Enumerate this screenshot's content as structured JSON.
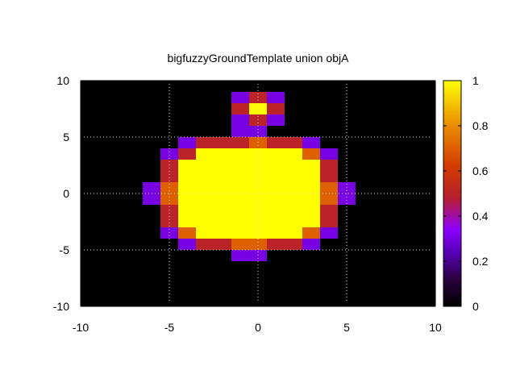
{
  "chart_data": {
    "type": "heatmap",
    "title": "bigfuzzyGroundTemplate union objA",
    "xlim": [
      -10,
      10
    ],
    "ylim": [
      -10,
      10
    ],
    "x_ticks": [
      -10,
      -5,
      0,
      5,
      10
    ],
    "y_ticks": [
      -10,
      -5,
      0,
      5,
      10
    ],
    "x_tick_labels": [
      "-10",
      "-5",
      "0",
      "5",
      "10"
    ],
    "y_tick_labels": [
      "-10",
      "-5",
      "0",
      "5",
      "10"
    ],
    "grid": true,
    "background_color": "#000000",
    "colorbar": {
      "range": [
        0,
        1
      ],
      "ticks": [
        0,
        0.2,
        0.4,
        0.6,
        0.8,
        1
      ],
      "tick_labels": [
        "0",
        "0.2",
        "0.4",
        "0.6",
        "0.8",
        "1"
      ],
      "palette": "black-blue-purple-red-orange-yellow"
    },
    "cells": [
      {
        "y": 8.5,
        "values": [
          [
            -1,
            0.3
          ],
          [
            0,
            0.5
          ],
          [
            1,
            0.3
          ]
        ]
      },
      {
        "y": 7.5,
        "values": [
          [
            -1,
            0.5
          ],
          [
            0,
            1.0
          ],
          [
            1,
            0.5
          ]
        ]
      },
      {
        "y": 6.5,
        "values": [
          [
            -1,
            0.3
          ],
          [
            0,
            0.5
          ],
          [
            1,
            0.3
          ]
        ]
      },
      {
        "y": 5.5,
        "values": [
          [
            -1,
            0.3
          ],
          [
            0,
            0.3
          ]
        ]
      },
      {
        "y": 4.5,
        "values": [
          [
            -4,
            0.3
          ],
          [
            -3,
            0.5
          ],
          [
            -2,
            0.5
          ],
          [
            -1,
            0.5
          ],
          [
            0,
            0.7
          ],
          [
            1,
            0.5
          ],
          [
            2,
            0.5
          ],
          [
            3,
            0.3
          ]
        ]
      },
      {
        "y": 3.5,
        "values": [
          [
            -5,
            0.3
          ],
          [
            -4,
            0.5
          ],
          [
            -3,
            1
          ],
          [
            -2,
            1
          ],
          [
            -1,
            1
          ],
          [
            0,
            1
          ],
          [
            1,
            1
          ],
          [
            2,
            1
          ],
          [
            3,
            0.7
          ],
          [
            4,
            0.3
          ]
        ]
      },
      {
        "y": 2.5,
        "values": [
          [
            -5,
            0.5
          ],
          [
            -4,
            1
          ],
          [
            -3,
            1
          ],
          [
            -2,
            1
          ],
          [
            -1,
            1
          ],
          [
            0,
            1
          ],
          [
            1,
            1
          ],
          [
            2,
            1
          ],
          [
            3,
            1
          ],
          [
            4,
            0.5
          ]
        ]
      },
      {
        "y": 1.5,
        "values": [
          [
            -5,
            0.5
          ],
          [
            -4,
            1
          ],
          [
            -3,
            1
          ],
          [
            -2,
            1
          ],
          [
            -1,
            1
          ],
          [
            0,
            1
          ],
          [
            1,
            1
          ],
          [
            2,
            1
          ],
          [
            3,
            1
          ],
          [
            4,
            0.5
          ]
        ]
      },
      {
        "y": 0.5,
        "values": [
          [
            -6,
            0.3
          ],
          [
            -5,
            0.7
          ],
          [
            -4,
            1
          ],
          [
            -3,
            1
          ],
          [
            -2,
            1
          ],
          [
            -1,
            1
          ],
          [
            0,
            1
          ],
          [
            1,
            1
          ],
          [
            2,
            1
          ],
          [
            3,
            1
          ],
          [
            4,
            0.7
          ],
          [
            5,
            0.3
          ]
        ]
      },
      {
        "y": -0.5,
        "values": [
          [
            -6,
            0.3
          ],
          [
            -5,
            0.7
          ],
          [
            -4,
            1
          ],
          [
            -3,
            1
          ],
          [
            -2,
            1
          ],
          [
            -1,
            1
          ],
          [
            0,
            1
          ],
          [
            1,
            1
          ],
          [
            2,
            1
          ],
          [
            3,
            1
          ],
          [
            4,
            0.7
          ],
          [
            5,
            0.3
          ]
        ]
      },
      {
        "y": -1.5,
        "values": [
          [
            -5,
            0.5
          ],
          [
            -4,
            1
          ],
          [
            -3,
            1
          ],
          [
            -2,
            1
          ],
          [
            -1,
            1
          ],
          [
            0,
            1
          ],
          [
            1,
            1
          ],
          [
            2,
            1
          ],
          [
            3,
            1
          ],
          [
            4,
            0.5
          ]
        ]
      },
      {
        "y": -2.5,
        "values": [
          [
            -5,
            0.5
          ],
          [
            -4,
            1
          ],
          [
            -3,
            1
          ],
          [
            -2,
            1
          ],
          [
            -1,
            1
          ],
          [
            0,
            1
          ],
          [
            1,
            1
          ],
          [
            2,
            1
          ],
          [
            3,
            1
          ],
          [
            4,
            0.5
          ]
        ]
      },
      {
        "y": -3.5,
        "values": [
          [
            -5,
            0.3
          ],
          [
            -4,
            0.7
          ],
          [
            -3,
            1
          ],
          [
            -2,
            1
          ],
          [
            -1,
            1
          ],
          [
            0,
            1
          ],
          [
            1,
            1
          ],
          [
            2,
            1
          ],
          [
            3,
            0.7
          ],
          [
            4,
            0.3
          ]
        ]
      },
      {
        "y": -4.5,
        "values": [
          [
            -4,
            0.3
          ],
          [
            -3,
            0.5
          ],
          [
            -2,
            0.5
          ],
          [
            -1,
            0.7
          ],
          [
            0,
            0.7
          ],
          [
            1,
            0.5
          ],
          [
            2,
            0.5
          ],
          [
            3,
            0.3
          ]
        ]
      },
      {
        "y": -5.5,
        "values": [
          [
            -1,
            0.3
          ],
          [
            0,
            0.3
          ]
        ]
      }
    ]
  }
}
